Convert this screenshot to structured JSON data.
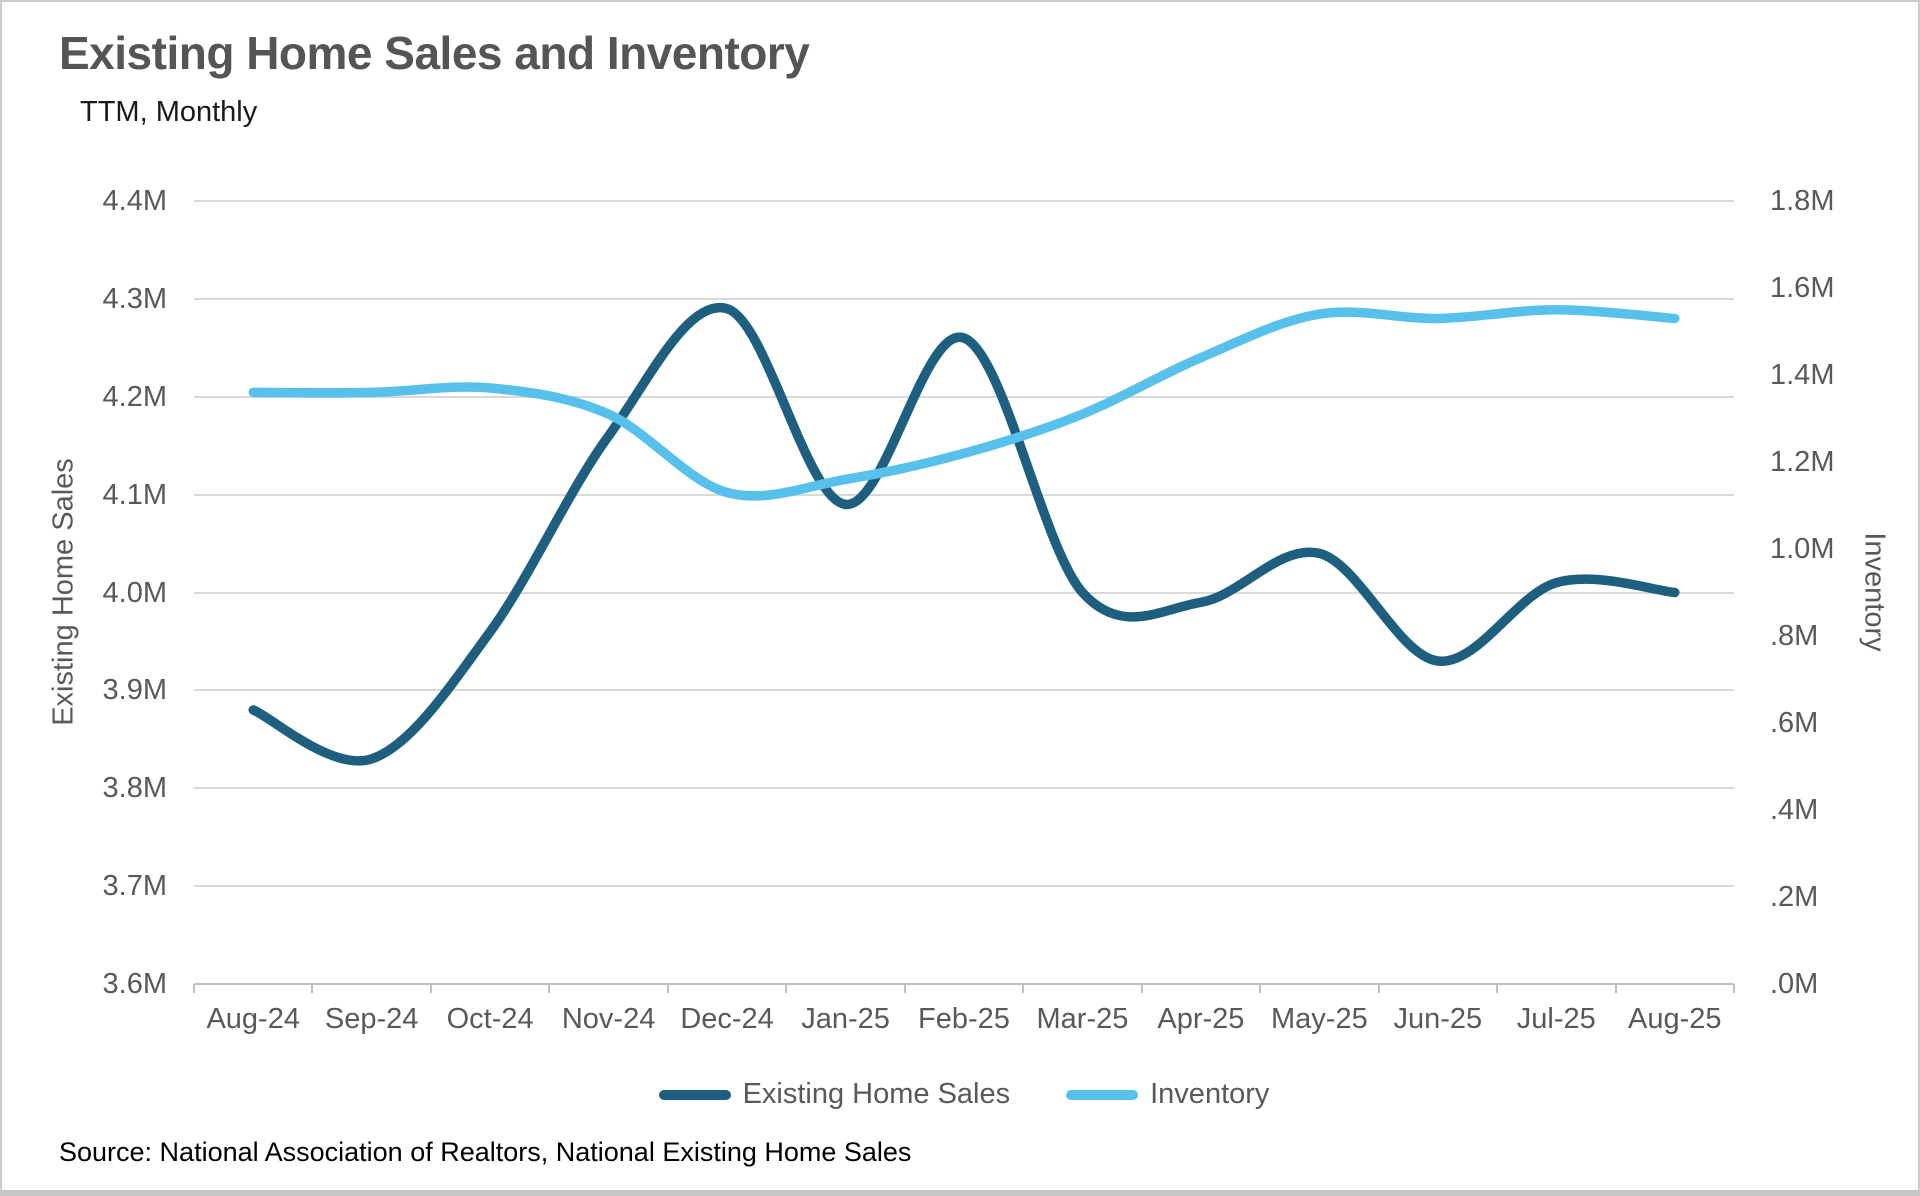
{
  "title": "Existing Home Sales and Inventory",
  "subtitle": "TTM, Monthly",
  "source": "Source: National Association of Realtors, National Existing Home Sales",
  "colors": {
    "sales_line": "#1e5f7f",
    "inventory_line": "#57c1ec",
    "title_text": "#555555",
    "axis_text": "#595959",
    "gridline": "#d9d9d9",
    "axis_line": "#bfbfbf",
    "background": "#ffffff"
  },
  "left_axis": {
    "title": "Existing Home Sales",
    "ticks": [
      "4.4M",
      "4.3M",
      "4.2M",
      "4.1M",
      "4.0M",
      "3.9M",
      "3.8M",
      "3.7M",
      "3.6M"
    ]
  },
  "right_axis": {
    "title": "Inventory",
    "ticks": [
      "1.8M",
      "1.6M",
      "1.4M",
      "1.2M",
      "1.0M",
      ".8M",
      ".6M",
      ".4M",
      ".2M",
      ".0M"
    ]
  },
  "x_axis": {
    "labels": [
      "Aug-24",
      "Sep-24",
      "Oct-24",
      "Nov-24",
      "Dec-24",
      "Jan-25",
      "Feb-25",
      "Mar-25",
      "Apr-25",
      "May-25",
      "Jun-25",
      "Jul-25",
      "Aug-25"
    ]
  },
  "legend": [
    {
      "label": "Existing Home Sales",
      "color": "#1e5f7f"
    },
    {
      "label": "Inventory",
      "color": "#57c1ec"
    }
  ],
  "chart_data": {
    "type": "line",
    "categories": [
      "Aug-24",
      "Sep-24",
      "Oct-24",
      "Nov-24",
      "Dec-24",
      "Jan-25",
      "Feb-25",
      "Mar-25",
      "Apr-25",
      "May-25",
      "Jun-25",
      "Jul-25",
      "Aug-25"
    ],
    "series": [
      {
        "name": "Existing Home Sales",
        "axis": "left",
        "color": "#1e5f7f",
        "values": [
          3.88,
          3.83,
          3.96,
          4.16,
          4.29,
          4.09,
          4.26,
          4.0,
          3.99,
          4.04,
          3.93,
          4.01,
          4.0
        ]
      },
      {
        "name": "Inventory",
        "axis": "right",
        "color": "#57c1ec",
        "values": [
          1.36,
          1.36,
          1.37,
          1.31,
          1.13,
          1.16,
          1.22,
          1.31,
          1.44,
          1.54,
          1.53,
          1.55,
          1.53
        ]
      }
    ],
    "title": "Existing Home Sales and Inventory",
    "subtitle": "TTM, Monthly",
    "left_ylabel": "Existing Home Sales",
    "right_ylabel": "Inventory",
    "left_ylim": [
      3.6,
      4.4
    ],
    "right_ylim": [
      0.0,
      1.8
    ],
    "grid": true,
    "smooth": true,
    "legend_position": "bottom"
  }
}
